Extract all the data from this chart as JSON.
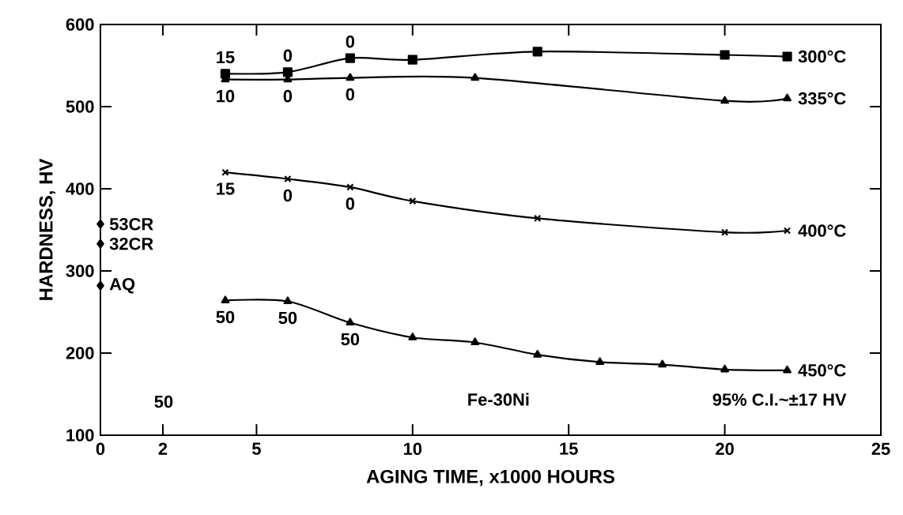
{
  "chart_data": {
    "type": "line",
    "xlabel": "AGING TIME,  x1000 HOURS",
    "ylabel": "HARDNESS, HV",
    "xlim": [
      0,
      25
    ],
    "ylim": [
      100,
      600
    ],
    "xticks": [
      0,
      2,
      5,
      10,
      15,
      20,
      25
    ],
    "yticks": [
      100,
      200,
      300,
      400,
      500,
      600
    ],
    "line_style": "solid",
    "series": [
      {
        "name": "300°C",
        "color": "#000000",
        "marker": "square",
        "x": [
          4,
          6,
          8,
          10,
          14,
          20,
          22
        ],
        "values": [
          540,
          542,
          559,
          557,
          567,
          563,
          561
        ]
      },
      {
        "name": "335°C",
        "color": "#000000",
        "marker": "triangle",
        "x": [
          4,
          6,
          8,
          12,
          20,
          22
        ],
        "values": [
          533,
          533,
          535,
          535,
          507,
          510
        ]
      },
      {
        "name": "400°C",
        "color": "#000000",
        "marker": "cross",
        "x": [
          4,
          6,
          8,
          10,
          14,
          20,
          22
        ],
        "values": [
          420,
          412,
          402,
          385,
          364,
          347,
          349
        ]
      },
      {
        "name": "450°C",
        "color": "#000000",
        "marker": "triangle",
        "x": [
          4,
          6,
          8,
          10,
          12,
          14,
          16,
          18,
          20,
          22
        ],
        "values": [
          264,
          263,
          237,
          219,
          213,
          198,
          189,
          186,
          180,
          179
        ]
      },
      {
        "type": "scatter",
        "color": "#000000",
        "marker": "diamond",
        "x": [
          0,
          0,
          0
        ],
        "values": [
          357,
          333,
          282
        ]
      }
    ],
    "annotations": [
      {
        "text": "15",
        "x": 4,
        "y": 540
      },
      {
        "text": "0",
        "x": 6,
        "y": 542
      },
      {
        "text": "0",
        "x": 8,
        "y": 559
      },
      {
        "text": "10",
        "x": 4,
        "y": 533
      },
      {
        "text": "0",
        "x": 6,
        "y": 533
      },
      {
        "text": "0",
        "x": 8,
        "y": 535
      },
      {
        "text": "15",
        "x": 4,
        "y": 420
      },
      {
        "text": "0",
        "x": 6,
        "y": 412
      },
      {
        "text": "0",
        "x": 8,
        "y": 402
      },
      {
        "text": "50",
        "x": 4,
        "y": 264
      },
      {
        "text": "50",
        "x": 6,
        "y": 263
      },
      {
        "text": "50",
        "x": 8,
        "y": 237
      },
      {
        "text": "53CR",
        "x": 0,
        "y": 357
      },
      {
        "text": "32CR",
        "x": 0,
        "y": 333
      },
      {
        "text": "AQ",
        "x": 0,
        "y": 282
      },
      "50",
      "Fe-30Ni",
      "95% C.I.~±17 HV"
    ]
  }
}
